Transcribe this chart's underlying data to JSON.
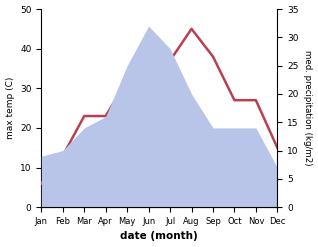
{
  "months": [
    "Jan",
    "Feb",
    "Mar",
    "Apr",
    "May",
    "Jun",
    "Jul",
    "Aug",
    "Sep",
    "Oct",
    "Nov",
    "Dec"
  ],
  "temperature": [
    6,
    13,
    23,
    23,
    32,
    36,
    37,
    45,
    38,
    27,
    27,
    15
  ],
  "precipitation": [
    9,
    10,
    14,
    16,
    25,
    32,
    28,
    20,
    14,
    14,
    14,
    7
  ],
  "temp_color": "#b94050",
  "precip_fill_color": "#b8c4e8",
  "temp_ylim": [
    0,
    50
  ],
  "precip_ylim": [
    0,
    35
  ],
  "xlabel": "date (month)",
  "ylabel_left": "max temp (C)",
  "ylabel_right": "med. precipitation (kg/m2)",
  "plot_bg_color": "#ffffff",
  "temp_yticks": [
    0,
    10,
    20,
    30,
    40,
    50
  ],
  "precip_yticks": [
    0,
    5,
    10,
    15,
    20,
    25,
    30,
    35
  ]
}
